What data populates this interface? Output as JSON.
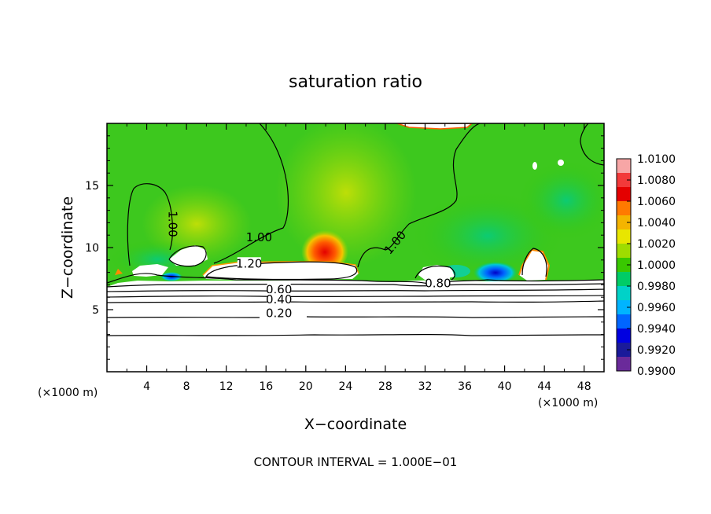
{
  "chart_data": {
    "type": "heatmap",
    "title": "saturation ratio",
    "xlabel": "X−coordinate",
    "ylabel": "Z−coordinate",
    "x_unit_left": "(×1000 m)",
    "x_unit_right": "(×1000 m)",
    "xlim": [
      0,
      50
    ],
    "ylim": [
      0,
      20
    ],
    "x_ticks": [
      4,
      8,
      12,
      16,
      20,
      24,
      28,
      32,
      36,
      40,
      44,
      48
    ],
    "y_ticks": [
      5,
      10,
      15
    ],
    "footer": "CONTOUR INTERVAL = 1.000E−01",
    "colorbar": {
      "min": 0.99,
      "max": 1.01,
      "labels": [
        "1.0100",
        "1.0080",
        "1.0060",
        "1.0040",
        "1.0020",
        "1.0000",
        "0.9980",
        "0.9960",
        "0.9940",
        "0.9920",
        "0.9900"
      ],
      "colors": [
        "#f7a6a6",
        "#f23a3a",
        "#e40000",
        "#ff7a00",
        "#f4b400",
        "#e8e600",
        "#9fdc00",
        "#39c800",
        "#00cc66",
        "#00d2c8",
        "#00b4ff",
        "#0066ff",
        "#0000e0",
        "#1a1a9a",
        "#6a2a9a"
      ]
    },
    "contour_labels": [
      {
        "text": "1.00",
        "x": 6.2,
        "z": 11.9
      },
      {
        "text": "1.00",
        "x": 15.3,
        "z": 10.5
      },
      {
        "text": "1.00",
        "x": 29.3,
        "z": 10.2
      },
      {
        "text": "1.20",
        "x": 14.3,
        "z": 8.4
      },
      {
        "text": "0.80",
        "x": 33.3,
        "z": 6.8
      },
      {
        "text": "0.60",
        "x": 17.3,
        "z": 6.3
      },
      {
        "text": "0.40",
        "x": 17.3,
        "z": 5.5
      },
      {
        "text": "0.20",
        "x": 17.3,
        "z": 4.4
      }
    ]
  }
}
